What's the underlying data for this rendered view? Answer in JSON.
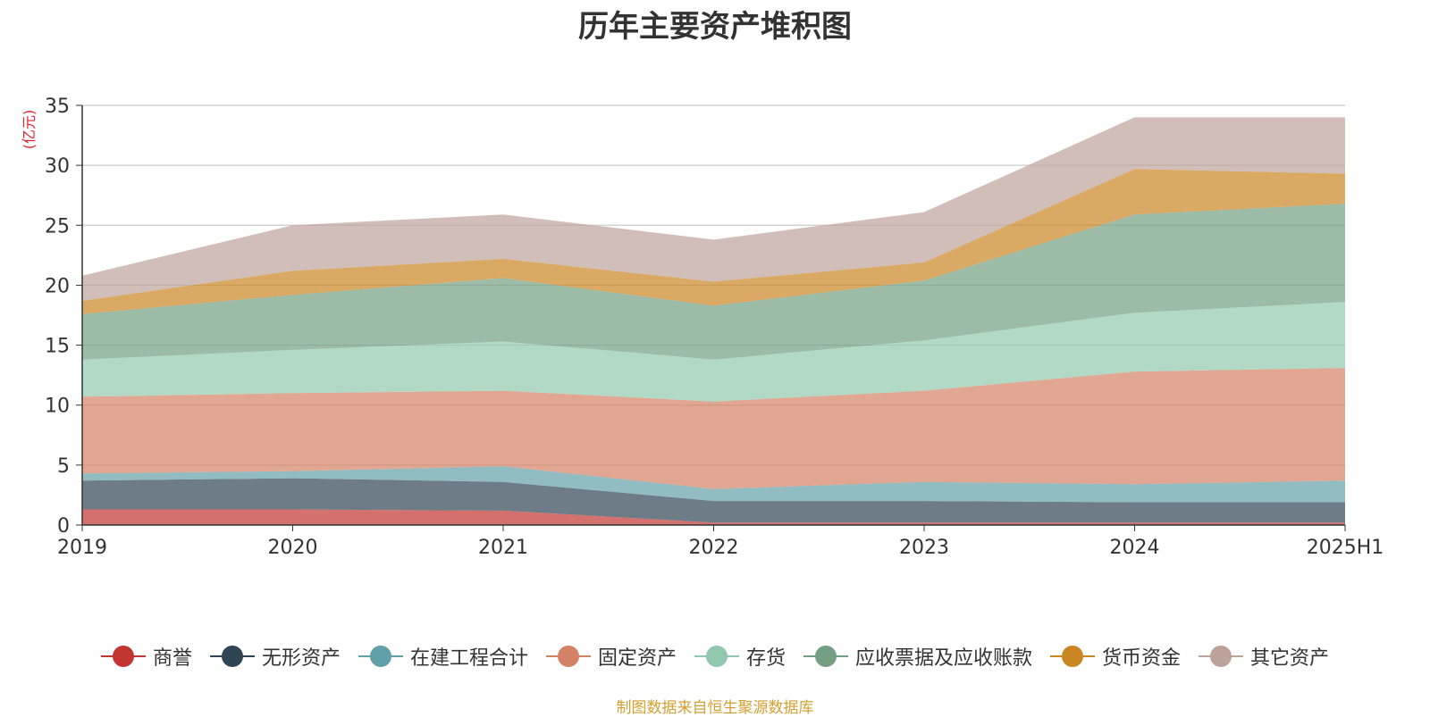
{
  "chart_data": {
    "type": "area",
    "stacked": true,
    "title": "历年主要资产堆积图",
    "ylabel": "(亿元)",
    "xlabel": "",
    "x": [
      "2019",
      "2020",
      "2021",
      "2022",
      "2023",
      "2024",
      "2025H1"
    ],
    "ylim": [
      0,
      35
    ],
    "yticks": [
      0,
      5,
      10,
      15,
      20,
      25,
      30,
      35
    ],
    "grid": true,
    "legend_position": "bottom",
    "series": [
      {
        "name": "商誉",
        "color": "#c23531",
        "values": [
          1.3,
          1.3,
          1.2,
          0.2,
          0.2,
          0.2,
          0.2
        ]
      },
      {
        "name": "无形资产",
        "color": "#2f4554",
        "values": [
          2.4,
          2.6,
          2.4,
          1.8,
          1.8,
          1.7,
          1.7
        ]
      },
      {
        "name": "在建工程合计",
        "color": "#61a0a8",
        "values": [
          0.6,
          0.6,
          1.3,
          1.0,
          1.6,
          1.5,
          1.8
        ]
      },
      {
        "name": "固定资产",
        "color": "#d48265",
        "values": [
          6.4,
          6.5,
          6.3,
          7.3,
          7.6,
          9.4,
          9.4
        ]
      },
      {
        "name": "存货",
        "color": "#91c7ae",
        "values": [
          3.1,
          3.6,
          4.1,
          3.5,
          4.2,
          4.9,
          5.5
        ]
      },
      {
        "name": "应收票据及应收账款",
        "color": "#749f83",
        "values": [
          3.8,
          4.6,
          5.3,
          4.5,
          5.0,
          8.2,
          8.2
        ]
      },
      {
        "name": "货币资金",
        "color": "#ca8622",
        "values": [
          1.1,
          2.0,
          1.6,
          2.0,
          1.5,
          3.8,
          2.5
        ]
      },
      {
        "name": "其它资产",
        "color": "#bda29a",
        "values": [
          2.1,
          3.8,
          3.7,
          3.5,
          4.2,
          4.3,
          4.7
        ]
      }
    ]
  },
  "footer": {
    "source_note": "制图数据来自恒生聚源数据库"
  }
}
